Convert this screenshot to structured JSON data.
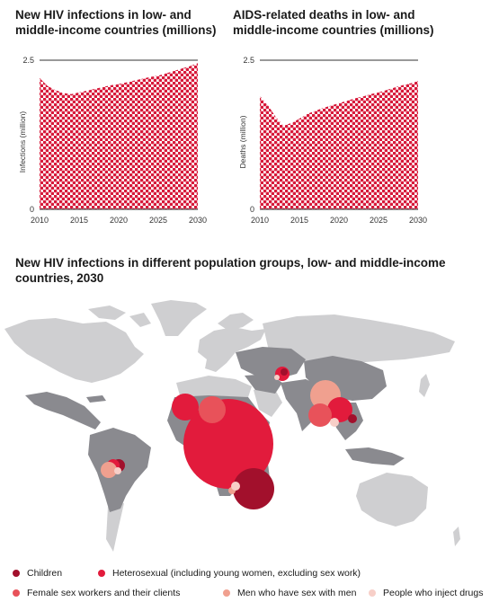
{
  "charts": [
    {
      "title": "New HIV infections in low- and middle-income countries (millions)",
      "chart_data": {
        "type": "area",
        "x": [
          2010,
          2011,
          2012,
          2013,
          2014,
          2015,
          2016,
          2017,
          2018,
          2019,
          2020,
          2021,
          2022,
          2023,
          2024,
          2025,
          2026,
          2027,
          2028,
          2029,
          2030
        ],
        "values": [
          2.2,
          2.07,
          2.0,
          1.95,
          1.93,
          1.96,
          1.99,
          2.02,
          2.05,
          2.08,
          2.1,
          2.13,
          2.16,
          2.19,
          2.22,
          2.24,
          2.28,
          2.32,
          2.36,
          2.4,
          2.45
        ],
        "xticks": [
          "2010",
          "2015",
          "2020",
          "2025",
          "2030"
        ],
        "yticks": [
          "0",
          "2.5"
        ],
        "xlim": [
          2010,
          2030
        ],
        "ylim": [
          0,
          2.5
        ],
        "ylabel": "Infections (million)",
        "xlabel": "",
        "fill_color": "#d7193a",
        "pattern": "dotted"
      }
    },
    {
      "title": "AIDS-related deaths in low- and middle-income countries (millions)",
      "chart_data": {
        "type": "area",
        "x": [
          2010,
          2011,
          2012,
          2013,
          2014,
          2015,
          2016,
          2017,
          2018,
          2019,
          2020,
          2021,
          2022,
          2023,
          2024,
          2025,
          2026,
          2027,
          2028,
          2029,
          2030
        ],
        "values": [
          1.9,
          1.75,
          1.55,
          1.4,
          1.45,
          1.52,
          1.6,
          1.65,
          1.7,
          1.74,
          1.78,
          1.82,
          1.86,
          1.89,
          1.93,
          1.96,
          2.0,
          2.04,
          2.08,
          2.11,
          2.15
        ],
        "xticks": [
          "2010",
          "2015",
          "2020",
          "2025",
          "2030"
        ],
        "yticks": [
          "0",
          "2.5"
        ],
        "xlim": [
          2010,
          2030
        ],
        "ylim": [
          0,
          2.5
        ],
        "ylabel": "Deaths (million)",
        "xlabel": "",
        "fill_color": "#d7193a",
        "pattern": "dotted"
      }
    }
  ],
  "map": {
    "title": "New HIV infections in different population groups, low- and middle-income countries, 2030",
    "colors": {
      "ocean": "#ffffff",
      "highlight_land": "#8a8a8f",
      "other_land": "#cfcfd1"
    },
    "groups": [
      {
        "name": "Children",
        "color": "#a2102c"
      },
      {
        "name": "Heterosexual (including young women, excluding sex work)",
        "color": "#e21b3c"
      },
      {
        "name": "Female sex workers and their clients",
        "color": "#e8525a"
      },
      {
        "name": "Men who have sex with men",
        "color": "#f0a08f"
      },
      {
        "name": "People who inject drugs",
        "color": "#f7cfc8"
      }
    ]
  }
}
